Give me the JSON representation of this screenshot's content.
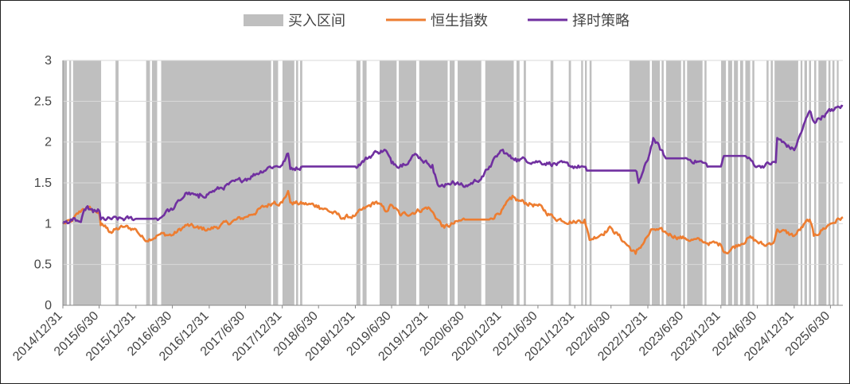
{
  "chart_data": {
    "type": "line",
    "title": "",
    "xlabel": "",
    "ylabel": "",
    "ylim": [
      0,
      3
    ],
    "yticks": [
      "0",
      "0.5",
      "1",
      "1.5",
      "2",
      "2.5",
      "3"
    ],
    "xticks": [
      "2014/12/31",
      "2015/6/30",
      "2015/12/31",
      "2016/6/30",
      "2016/12/31",
      "2017/6/30",
      "2017/12/31",
      "2018/6/30",
      "2018/12/31",
      "2019/6/30",
      "2019/12/31",
      "2020/6/30",
      "2020/12/31",
      "2021/6/30",
      "2021/12/31",
      "2022/6/30",
      "2022/12/31",
      "2023/6/30",
      "2023/12/31",
      "2024/6/30",
      "2024/12/31",
      "2025/6/30"
    ],
    "xlim": [
      "2014/12/31",
      "2025/8/31"
    ],
    "grid": "horizontal",
    "legend_position": "top",
    "legend": [
      {
        "label": "买入区间",
        "kind": "band",
        "color": "#BFBFBF"
      },
      {
        "label": "恒生指数",
        "kind": "line",
        "color": "#ED7D31"
      },
      {
        "label": "择时策略",
        "kind": "line",
        "color": "#7030A0"
      }
    ],
    "buy_intervals": [
      [
        "2014/12/31",
        "2015/1/20"
      ],
      [
        "2015/2/1",
        "2015/2/10"
      ],
      [
        "2015/2/20",
        "2015/7/10"
      ],
      [
        "2015/9/20",
        "2015/10/5"
      ],
      [
        "2016/2/20",
        "2016/3/10"
      ],
      [
        "2016/3/20",
        "2016/4/15"
      ],
      [
        "2016/5/5",
        "2017/11/5"
      ],
      [
        "2017/11/15",
        "2017/12/10"
      ],
      [
        "2018/1/1",
        "2018/3/1"
      ],
      [
        "2018/3/10",
        "2018/3/20"
      ],
      [
        "2018/3/30",
        "2018/4/10"
      ],
      [
        "2019/1/5",
        "2019/1/25"
      ],
      [
        "2019/2/5",
        "2019/2/25"
      ],
      [
        "2019/5/1",
        "2019/7/25"
      ],
      [
        "2019/8/5",
        "2019/10/31"
      ],
      [
        "2019/11/15",
        "2020/4/5"
      ],
      [
        "2020/4/15",
        "2020/5/10"
      ],
      [
        "2020/5/25",
        "2020/9/20"
      ],
      [
        "2020/10/10",
        "2021/3/1"
      ],
      [
        "2021/3/15",
        "2021/3/30"
      ],
      [
        "2021/4/20",
        "2021/5/1"
      ],
      [
        "2021/9/1",
        "2021/9/15"
      ],
      [
        "2021/12/1",
        "2021/12/12"
      ],
      [
        "2022/2/1",
        "2022/2/10"
      ],
      [
        "2022/2/20",
        "2022/3/1"
      ],
      [
        "2022/3/15",
        "2022/3/25"
      ],
      [
        "2022/9/30",
        "2023/1/10"
      ],
      [
        "2023/1/20",
        "2023/3/1"
      ],
      [
        "2023/3/10",
        "2023/3/20"
      ],
      [
        "2023/4/1",
        "2023/6/15"
      ],
      [
        "2023/6/25",
        "2023/7/5"
      ],
      [
        "2023/7/15",
        "2023/9/30"
      ],
      [
        "2023/10/10",
        "2023/10/20"
      ],
      [
        "2024/1/1",
        "2024/1/25"
      ],
      [
        "2024/2/5",
        "2024/2/25"
      ],
      [
        "2024/3/5",
        "2024/3/25"
      ],
      [
        "2024/4/5",
        "2024/4/20"
      ],
      [
        "2024/5/1",
        "2024/5/25"
      ],
      [
        "2024/6/5",
        "2024/6/15"
      ],
      [
        "2024/8/15",
        "2024/8/25"
      ],
      [
        "2024/9/5",
        "2024/9/15"
      ],
      [
        "2024/9/24",
        "2025/1/20"
      ],
      [
        "2025/2/1",
        "2025/2/10"
      ],
      [
        "2025/2/20",
        "2025/3/5"
      ],
      [
        "2025/3/15",
        "2025/3/25"
      ],
      [
        "2025/4/10",
        "2025/4/20"
      ],
      [
        "2025/5/1",
        "2025/6/10"
      ],
      [
        "2025/6/20",
        "2025/6/30"
      ],
      [
        "2025/7/10",
        "2025/7/20"
      ],
      [
        "2025/8/1",
        "2025/8/10"
      ]
    ],
    "series": [
      {
        "name": "恒生指数",
        "color": "#ED7D31",
        "points": [
          [
            "2014/12/31",
            1.0
          ],
          [
            "2015/2/15",
            1.03
          ],
          [
            "2015/4/10",
            1.18
          ],
          [
            "2015/4/28",
            1.2
          ],
          [
            "2015/5/31",
            1.16
          ],
          [
            "2015/6/30",
            1.14
          ],
          [
            "2015/7/8",
            0.98
          ],
          [
            "2015/8/10",
            0.95
          ],
          [
            "2015/8/25",
            0.9
          ],
          [
            "2015/10/31",
            0.96
          ],
          [
            "2015/12/31",
            0.93
          ],
          [
            "2016/2/12",
            0.8
          ],
          [
            "2016/4/30",
            0.87
          ],
          [
            "2016/6/30",
            0.86
          ],
          [
            "2016/9/9",
            0.98
          ],
          [
            "2016/11/9",
            0.94
          ],
          [
            "2016/12/31",
            0.93
          ],
          [
            "2017/6/30",
            1.08
          ],
          [
            "2017/11/22",
            1.27
          ],
          [
            "2017/12/31",
            1.26
          ],
          [
            "2018/1/29",
            1.4
          ],
          [
            "2018/2/9",
            1.26
          ],
          [
            "2018/6/30",
            1.22
          ],
          [
            "2018/10/31",
            1.07
          ],
          [
            "2018/12/31",
            1.1
          ],
          [
            "2019/4/15",
            1.27
          ],
          [
            "2019/5/31",
            1.15
          ],
          [
            "2019/6/30",
            1.23
          ],
          [
            "2019/8/15",
            1.1
          ],
          [
            "2019/12/31",
            1.2
          ],
          [
            "2020/3/19",
            0.95
          ],
          [
            "2020/6/30",
            1.05
          ],
          [
            "2020/10/30",
            1.05
          ],
          [
            "2020/12/31",
            1.17
          ],
          [
            "2021/2/17",
            1.3
          ],
          [
            "2021/6/30",
            1.22
          ],
          [
            "2021/9/20",
            1.07
          ],
          [
            "2021/12/31",
            1.02
          ],
          [
            "2022/2/18",
            1.05
          ],
          [
            "2022/3/15",
            0.8
          ],
          [
            "2022/6/30",
            0.95
          ],
          [
            "2022/10/31",
            0.63
          ],
          [
            "2022/12/31",
            0.85
          ],
          [
            "2023/1/27",
            0.93
          ],
          [
            "2023/6/30",
            0.82
          ],
          [
            "2023/9/30",
            0.78
          ],
          [
            "2023/12/31",
            0.74
          ],
          [
            "2024/1/22",
            0.65
          ],
          [
            "2024/5/20",
            0.83
          ],
          [
            "2024/8/5",
            0.73
          ],
          [
            "2024/9/23",
            0.79
          ],
          [
            "2024/10/7",
            0.93
          ],
          [
            "2024/12/31",
            0.85
          ],
          [
            "2025/3/18",
            1.05
          ],
          [
            "2025/4/8",
            0.85
          ],
          [
            "2025/6/30",
            1.0
          ],
          [
            "2025/8/31",
            1.08
          ]
        ]
      },
      {
        "name": "择时策略",
        "color": "#7030A0",
        "points": [
          [
            "2014/12/31",
            1.0
          ],
          [
            "2015/2/15",
            1.04
          ],
          [
            "2015/3/31",
            1.02
          ],
          [
            "2015/4/28",
            1.2
          ],
          [
            "2015/5/31",
            1.14
          ],
          [
            "2015/6/30",
            1.16
          ],
          [
            "2015/7/8",
            1.05
          ],
          [
            "2015/12/31",
            1.06
          ],
          [
            "2016/3/31",
            1.06
          ],
          [
            "2016/4/30",
            1.07
          ],
          [
            "2016/5/31",
            1.16
          ],
          [
            "2016/6/30",
            1.17
          ],
          [
            "2016/9/9",
            1.38
          ],
          [
            "2016/11/9",
            1.32
          ],
          [
            "2016/12/31",
            1.38
          ],
          [
            "2017/6/30",
            1.55
          ],
          [
            "2017/10/31",
            1.7
          ],
          [
            "2017/11/22",
            1.7
          ],
          [
            "2017/12/31",
            1.72
          ],
          [
            "2018/1/29",
            1.86
          ],
          [
            "2018/2/9",
            1.67
          ],
          [
            "2018/4/10",
            1.7
          ],
          [
            "2018/12/31",
            1.7
          ],
          [
            "2019/4/15",
            1.88
          ],
          [
            "2019/5/31",
            1.9
          ],
          [
            "2019/6/30",
            1.74
          ],
          [
            "2019/8/15",
            1.72
          ],
          [
            "2019/10/31",
            1.85
          ],
          [
            "2019/12/31",
            1.73
          ],
          [
            "2020/1/20",
            1.72
          ],
          [
            "2020/2/15",
            1.48
          ],
          [
            "2020/3/19",
            1.45
          ],
          [
            "2020/4/30",
            1.52
          ],
          [
            "2020/6/30",
            1.45
          ],
          [
            "2020/9/30",
            1.58
          ],
          [
            "2020/10/31",
            1.7
          ],
          [
            "2020/12/31",
            1.9
          ],
          [
            "2021/2/17",
            1.8
          ],
          [
            "2021/3/10",
            1.8
          ],
          [
            "2021/12/31",
            1.7
          ],
          [
            "2022/2/10",
            1.7
          ],
          [
            "2022/3/1",
            1.65
          ],
          [
            "2022/10/31",
            1.65
          ],
          [
            "2022/11/15",
            1.5
          ],
          [
            "2022/12/31",
            1.78
          ],
          [
            "2023/1/27",
            2.05
          ],
          [
            "2023/3/31",
            1.8
          ],
          [
            "2023/6/30",
            1.8
          ],
          [
            "2023/9/30",
            1.75
          ],
          [
            "2023/10/31",
            1.7
          ],
          [
            "2023/12/31",
            1.7
          ],
          [
            "2024/1/15",
            1.83
          ],
          [
            "2024/4/30",
            1.83
          ],
          [
            "2024/6/30",
            1.7
          ],
          [
            "2024/9/30",
            1.75
          ],
          [
            "2024/10/7",
            2.05
          ],
          [
            "2024/10/31",
            2.0
          ],
          [
            "2024/12/31",
            1.9
          ],
          [
            "2025/3/18",
            2.38
          ],
          [
            "2025/4/8",
            2.25
          ],
          [
            "2025/6/30",
            2.38
          ],
          [
            "2025/8/31",
            2.44
          ]
        ]
      }
    ]
  }
}
